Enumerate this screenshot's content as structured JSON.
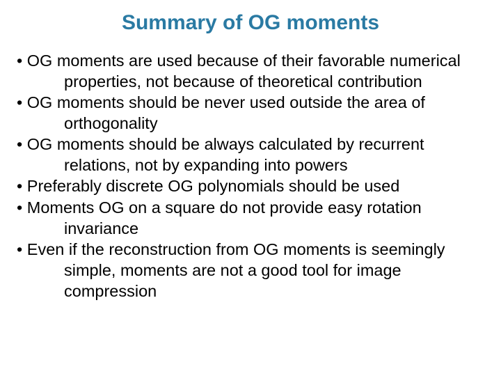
{
  "title": {
    "text": "Summary of OG moments",
    "color": "#2a7aa3",
    "fontsize": 30
  },
  "body": {
    "color": "#000000",
    "fontsize": 23.5
  },
  "bullets": [
    "OG moments are used because of their favorable numerical properties, not because of theoretical contribution",
    "OG moments should be never used outside the area of orthogonality",
    "OG moments should be always calculated by recurrent relations, not by expanding into powers",
    "Preferably discrete OG polynomials should be used",
    "Moments OG on a square do not provide easy rotation invariance",
    "Even if the reconstruction from OG moments is seemingly simple, moments are not a good tool for image compression"
  ]
}
